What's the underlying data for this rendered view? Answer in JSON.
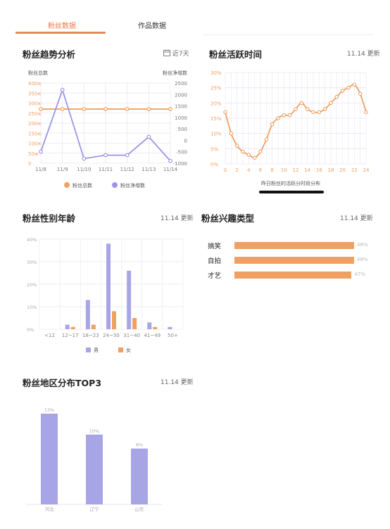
{
  "tabs": [
    {
      "label": "粉丝数据",
      "active": true
    },
    {
      "label": "作品数据",
      "active": false
    }
  ],
  "trend": {
    "title": "粉丝趋势分析",
    "range_label": "近7天",
    "chart_data": {
      "type": "line",
      "categories": [
        "11/8",
        "11/9",
        "11/10",
        "11/11",
        "11/12",
        "11/13",
        "11/14"
      ],
      "ylabel_left": "粉丝总数",
      "ylabel_right": "粉丝净增数",
      "yticks_left": [
        "0",
        "50w",
        "100w",
        "150w",
        "200w",
        "250w",
        "300w",
        "350w",
        "400w"
      ],
      "yticks_right": [
        "-1000",
        "-500",
        "0",
        "500",
        "1000",
        "1500",
        "2000",
        "2500"
      ],
      "ylim_left": [
        0,
        400
      ],
      "ylim_right": [
        -1000,
        2500
      ],
      "series": [
        {
          "name": "粉丝总数",
          "axis": "left",
          "values": [
            270,
            270,
            270,
            270,
            270,
            270,
            270
          ],
          "color": "#f0a062"
        },
        {
          "name": "粉丝净增数",
          "axis": "right",
          "values": [
            -500,
            2200,
            -800,
            -650,
            -650,
            150,
            -900
          ],
          "color": "#9b96e6"
        }
      ]
    }
  },
  "active_time": {
    "title": "粉丝活跃时间",
    "update_label": "11.14 更新",
    "caption": "昨日粉丝的活跃分时段分布",
    "chart_data": {
      "type": "line",
      "x": [
        0,
        1,
        2,
        3,
        4,
        5,
        6,
        7,
        8,
        9,
        10,
        11,
        12,
        13,
        14,
        15,
        16,
        17,
        18,
        19,
        20,
        21,
        22,
        23,
        24
      ],
      "values": [
        17,
        10,
        6,
        4,
        3,
        2,
        4,
        8,
        13,
        15,
        16,
        16,
        18,
        20,
        18,
        17,
        17,
        18,
        20,
        22,
        24,
        25,
        26,
        23,
        17
      ],
      "xticks": [
        "0",
        "2",
        "4",
        "6",
        "8",
        "10",
        "12",
        "14",
        "16",
        "18",
        "20",
        "22",
        "24"
      ],
      "yticks": [
        "0%",
        "5%",
        "10%",
        "15%",
        "20%",
        "25%",
        "30%"
      ],
      "ylim": [
        0,
        30
      ],
      "color": "#f0a062"
    }
  },
  "gender_age": {
    "title": "粉丝性别年龄",
    "update_label": "11.14 更新",
    "chart_data": {
      "type": "bar",
      "categories": [
        "<12",
        "12~17",
        "18~23",
        "24~30",
        "31~40",
        "41~49",
        "50+"
      ],
      "yticks": [
        "0%",
        "10%",
        "20%",
        "30%",
        "40%"
      ],
      "ylim": [
        0,
        40
      ],
      "series": [
        {
          "name": "男",
          "values": [
            0,
            2,
            13,
            38,
            26,
            3,
            1
          ],
          "color": "#a8a5e6"
        },
        {
          "name": "女",
          "values": [
            0,
            1,
            2,
            8,
            5,
            1,
            0
          ],
          "color": "#f0a062"
        }
      ]
    }
  },
  "interests": {
    "title": "粉丝兴趣类型",
    "update_label": "11.14 更新",
    "chart_data": {
      "type": "bar",
      "categories": [
        "搞笑",
        "自拍",
        "才艺"
      ],
      "values": [
        48,
        48,
        47
      ],
      "value_labels": [
        "48%",
        "48%",
        "47%"
      ],
      "color": "#f0a062"
    }
  },
  "region": {
    "title": "粉丝地区分布TOP3",
    "update_label": "11.14 更新",
    "chart_data": {
      "type": "bar",
      "categories": [
        "河北",
        "辽宁",
        "山东"
      ],
      "values": [
        13,
        10,
        8
      ],
      "value_labels": [
        "13%",
        "10%",
        "8%"
      ],
      "color": "#a8a5e6"
    }
  }
}
